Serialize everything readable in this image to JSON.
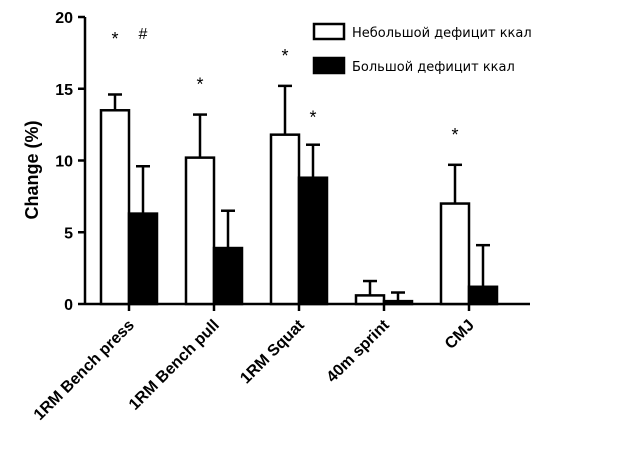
{
  "chart_data": {
    "type": "bar",
    "ylabel": "Change (%)",
    "ylim": [
      0,
      20
    ],
    "yticks": [
      0,
      5,
      10,
      15,
      20
    ],
    "categories": [
      "1RM Bench press",
      "1RM Bench pull",
      "1RM Squat",
      "40m sprint",
      "CMJ"
    ],
    "legend_position": "top-right",
    "series": [
      {
        "name": "Небольшой дефицит ккал",
        "fill": "#ffffff",
        "values": [
          13.5,
          10.2,
          11.8,
          0.6,
          7.0
        ],
        "errors": [
          1.1,
          3.0,
          3.4,
          1.0,
          2.7
        ]
      },
      {
        "name": "Большой дефицит ккал",
        "fill": "#000000",
        "values": [
          6.3,
          3.9,
          8.8,
          0.2,
          1.2
        ],
        "errors": [
          3.3,
          2.6,
          2.3,
          0.6,
          2.9
        ]
      }
    ],
    "annotations": [
      {
        "text": "*",
        "category": 0,
        "series": 0,
        "y": 18.9
      },
      {
        "text": "#",
        "category": 0,
        "series": 1,
        "y": 18.9
      },
      {
        "text": "*",
        "category": 1,
        "series": 0,
        "y": 15.7
      },
      {
        "text": "*",
        "category": 2,
        "series": 0,
        "y": 17.7
      },
      {
        "text": "*",
        "category": 2,
        "series": 1,
        "y": 13.4
      },
      {
        "text": "*",
        "category": 4,
        "series": 0,
        "y": 12.2
      }
    ]
  }
}
